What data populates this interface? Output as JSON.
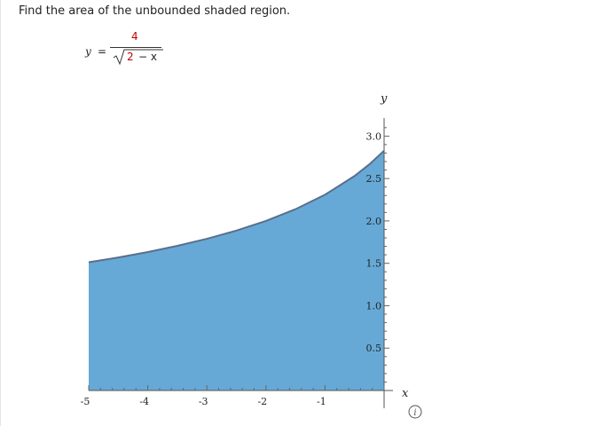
{
  "question": {
    "text": "Find the area of the unbounded shaded region."
  },
  "equation": {
    "lhs": "y",
    "eq": "=",
    "numerator": "4",
    "radicand_number": "2",
    "radicand_rest": "− x"
  },
  "colors": {
    "fill": "#66a9d6",
    "curve": "#5a6e8c",
    "highlight": "#c00000"
  },
  "chart_data": {
    "type": "area",
    "function": "y = 4/sqrt(2 - x)",
    "x": [
      -5,
      -4.5,
      -4,
      -3.5,
      -3,
      -2.5,
      -2,
      -1.5,
      -1,
      -0.5,
      -0.25,
      0
    ],
    "y": [
      1.512,
      1.569,
      1.633,
      1.706,
      1.789,
      1.886,
      2.0,
      2.138,
      2.309,
      2.53,
      2.667,
      2.828
    ],
    "xlim": [
      -5,
      0
    ],
    "ylim": [
      0,
      3.0
    ],
    "xlabel": "x",
    "ylabel": "y",
    "x_ticks": [
      "-5",
      "-4",
      "-3",
      "-2",
      "-1"
    ],
    "x_tick_values": [
      -5,
      -4,
      -3,
      -2,
      -1
    ],
    "y_ticks": [
      "0.5",
      "1.0",
      "1.5",
      "2.0",
      "2.5",
      "3.0"
    ],
    "y_tick_values": [
      0.5,
      1.0,
      1.5,
      2.0,
      2.5,
      3.0
    ],
    "grid": false
  }
}
